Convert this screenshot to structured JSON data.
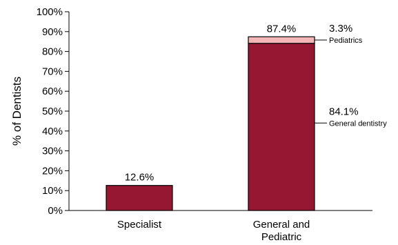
{
  "chart_data": {
    "type": "bar",
    "stacked": true,
    "ylabel": "% of Dentists",
    "ylim": [
      0,
      100
    ],
    "yticks": [
      0,
      10,
      20,
      30,
      40,
      50,
      60,
      70,
      80,
      90,
      100
    ],
    "ytick_labels": [
      "0%",
      "10%",
      "20%",
      "30%",
      "40%",
      "50%",
      "60%",
      "70%",
      "80%",
      "90%",
      "100%"
    ],
    "categories": [
      {
        "label_lines": [
          "Specialist"
        ],
        "total_label": "12.6%"
      },
      {
        "label_lines": [
          "General and",
          "Pediatric"
        ],
        "total_label": "87.4%"
      }
    ],
    "series": [
      {
        "category_index": 0,
        "value": 12.6,
        "color": "#951732"
      },
      {
        "category_index": 1,
        "name": "General dentistry",
        "value": 84.1,
        "value_label": "84.1%",
        "color": "#951732"
      },
      {
        "category_index": 1,
        "name": "Pediatrics",
        "value": 3.3,
        "value_label": "3.3%",
        "color": "#f4b6b6"
      }
    ],
    "grid": false,
    "colors": {
      "bar_main": "#951732",
      "bar_light": "#f4b6b6",
      "axis": "#000000"
    }
  }
}
